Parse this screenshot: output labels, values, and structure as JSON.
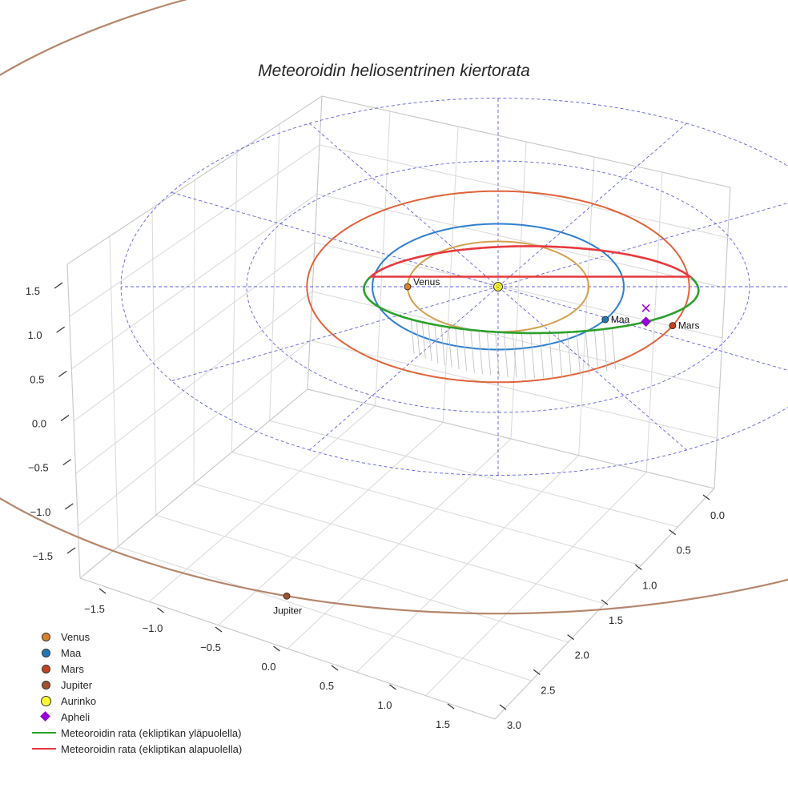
{
  "chart_data": {
    "type": "line",
    "projection": "3d",
    "title": "Meteoroidin heliosentrinen kiertorata",
    "axes": {
      "x": {
        "ticks": [
          0.0,
          0.5,
          1.0,
          1.5,
          2.0,
          2.5,
          3.0
        ],
        "tick_labels": [
          "0.0",
          "0.5",
          "1.0",
          "1.5",
          "2.0",
          "2.5",
          "3.0"
        ]
      },
      "y": {
        "ticks": [
          -1.5,
          -1.0,
          -0.5,
          0.0,
          0.5,
          1.0,
          1.5
        ],
        "tick_labels": [
          "−1.5",
          "−1.0",
          "−0.5",
          "0.0",
          "0.5",
          "1.0",
          "1.5"
        ]
      },
      "z": {
        "ticks": [
          -1.5,
          -1.0,
          -0.5,
          0.0,
          0.5,
          1.0,
          1.5
        ],
        "tick_labels": [
          "−1.5",
          "−1.0",
          "−0.5",
          "0.0",
          "0.5",
          "1.0",
          "1.5"
        ]
      }
    },
    "planet_orbits": [
      {
        "name": "Venus",
        "radius_au": 0.72,
        "color": "#d4a04b"
      },
      {
        "name": "Maa",
        "radius_au": 1.0,
        "color": "#2e7fd0"
      },
      {
        "name": "Mars",
        "radius_au": 1.52,
        "color": "#e0633a"
      },
      {
        "name": "Jupiter",
        "radius_au": 5.2,
        "color": "#b5866c"
      }
    ],
    "planets": [
      {
        "name": "Venus",
        "label": "Venus",
        "color": "#d9822b"
      },
      {
        "name": "Maa",
        "label": "Maa",
        "color": "#1f77b4"
      },
      {
        "name": "Mars",
        "label": "Mars",
        "color": "#c1441e"
      },
      {
        "name": "Jupiter",
        "label": "Jupiter",
        "color": "#a0522d"
      }
    ],
    "sun": {
      "label": "Aurinko",
      "color": "#ffff33"
    },
    "aphelion": {
      "label": "Apheli",
      "color": "#9400d3"
    },
    "ecliptic_grid": {
      "rings_au": [
        1,
        2,
        3
      ],
      "spokes": 12,
      "color": "#4444dd"
    },
    "meteoroid": {
      "above": {
        "label": "Meteoroidin rata (ekliptikan yläpuolella)",
        "color": "#2ca02c"
      },
      "below": {
        "label": "Meteoroidin rata (ekliptikan alapuolella)",
        "color": "#e8383d"
      }
    },
    "legend": [
      {
        "label": "Venus",
        "kind": "dot",
        "color": "#d9822b"
      },
      {
        "label": "Maa",
        "kind": "dot",
        "color": "#1f77b4"
      },
      {
        "label": "Mars",
        "kind": "dot",
        "color": "#c1441e"
      },
      {
        "label": "Jupiter",
        "kind": "dot",
        "color": "#a0522d"
      },
      {
        "label": "Aurinko",
        "kind": "sun",
        "color": "#ffff33"
      },
      {
        "label": "Apheli",
        "kind": "diamond",
        "color": "#9400d3"
      },
      {
        "label": "Meteoroidin rata (ekliptikan yläpuolella)",
        "kind": "line",
        "color": "#2ca02c"
      },
      {
        "label": "Meteoroidin rata (ekliptikan alapuolella)",
        "kind": "line",
        "color": "#e8383d"
      }
    ]
  }
}
